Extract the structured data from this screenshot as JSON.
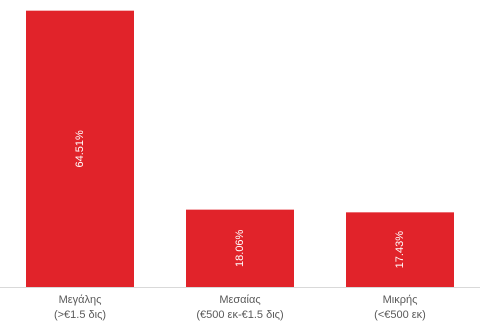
{
  "chart_data": {
    "type": "bar",
    "categories": [
      [
        "Μεγάλης",
        "(>€1.5 δις)"
      ],
      [
        "Μεσαίας",
        "(€500 εκ-€1.5 δις)"
      ],
      [
        "Μικρής",
        "(<€500 εκ)"
      ]
    ],
    "values": [
      64.51,
      18.06,
      17.43
    ],
    "data_labels": [
      "64.51%",
      "18.06%",
      "17.43%"
    ],
    "title": "",
    "xlabel": "",
    "ylabel": "",
    "ylim": [
      0,
      67
    ],
    "bar_color": "#e1232a",
    "axis_color": "#d9d9d9",
    "grid": false,
    "legend": false
  }
}
